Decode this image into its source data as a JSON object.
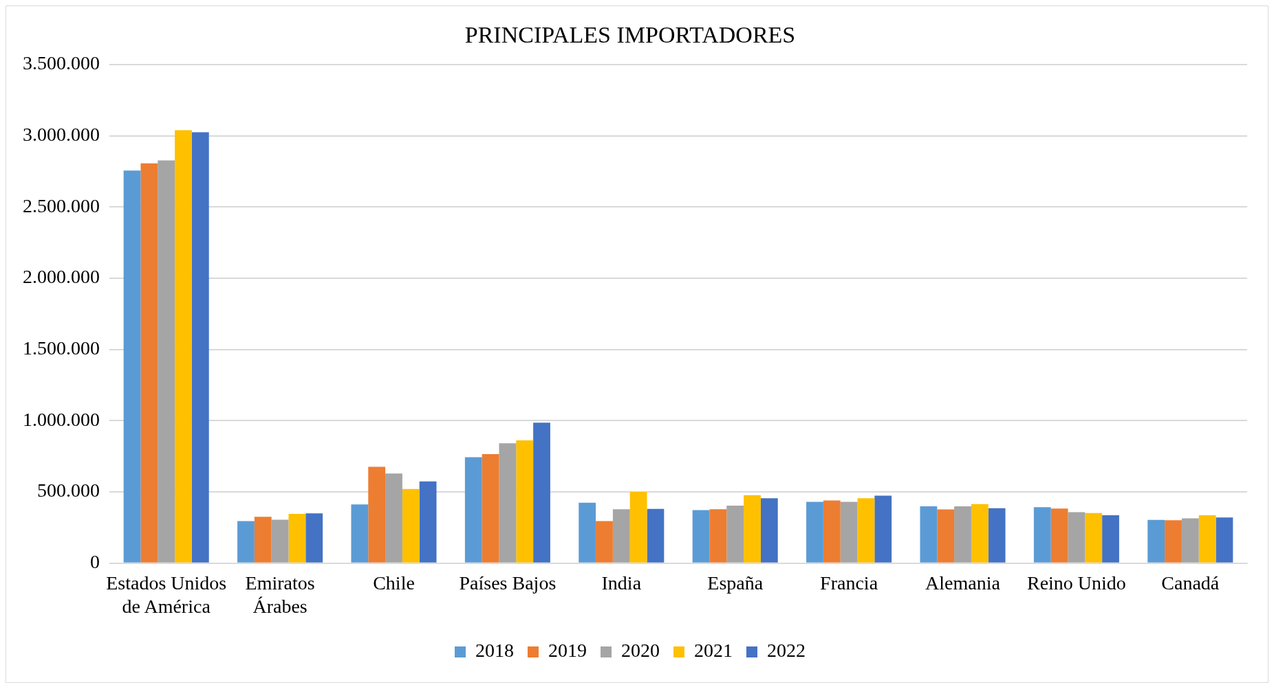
{
  "chart_data": {
    "type": "bar",
    "title": "PRINCIPALES IMPORTADORES",
    "categories": [
      "Estados Unidos de América",
      "Emiratos Árabes",
      "Chile",
      "Países Bajos",
      "India",
      "España",
      "Francia",
      "Alemania",
      "Reino Unido",
      "Canadá"
    ],
    "series": [
      {
        "name": "2018",
        "color": "#5b9bd5",
        "values": [
          2756000,
          295000,
          413000,
          744000,
          424000,
          373000,
          430000,
          399000,
          393000,
          304000
        ]
      },
      {
        "name": "2019",
        "color": "#ed7d31",
        "values": [
          2806000,
          326000,
          676000,
          765000,
          296000,
          379000,
          440000,
          378000,
          384000,
          301000
        ]
      },
      {
        "name": "2020",
        "color": "#a5a5a5",
        "values": [
          2827000,
          305000,
          629000,
          842000,
          379000,
          404000,
          430000,
          399000,
          358000,
          315000
        ]
      },
      {
        "name": "2021",
        "color": "#ffc000",
        "values": [
          3039000,
          346000,
          521000,
          862000,
          501000,
          477000,
          456000,
          415000,
          352000,
          336000
        ]
      },
      {
        "name": "2022",
        "color": "#4472c4",
        "values": [
          3024000,
          350000,
          574000,
          986000,
          381000,
          456000,
          474000,
          386000,
          336000,
          321000
        ]
      }
    ],
    "ylim": [
      0,
      3500000
    ],
    "yticks": [
      {
        "value": 0,
        "label": "0"
      },
      {
        "value": 500000,
        "label": "500.000"
      },
      {
        "value": 1000000,
        "label": "1.000.000"
      },
      {
        "value": 1500000,
        "label": "1.500.000"
      },
      {
        "value": 2000000,
        "label": "2.000.000"
      },
      {
        "value": 2500000,
        "label": "2.500.000"
      },
      {
        "value": 3000000,
        "label": "3.000.000"
      },
      {
        "value": 3500000,
        "label": "3.500.000"
      }
    ],
    "grid": "y",
    "legend": "bottom"
  }
}
